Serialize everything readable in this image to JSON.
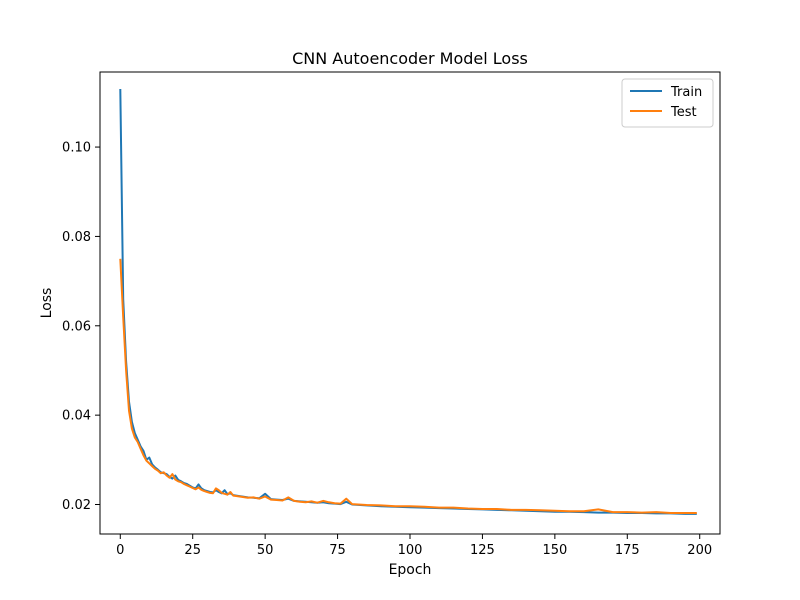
{
  "chart_data": {
    "type": "line",
    "title": "CNN Autoencoder Model Loss",
    "xlabel": "Epoch",
    "ylabel": "Loss",
    "xlim": [
      -7,
      207
    ],
    "ylim": [
      0.0134,
      0.1168
    ],
    "xticks": [
      0,
      25,
      50,
      75,
      100,
      125,
      150,
      175,
      200
    ],
    "yticks": [
      0.02,
      0.04,
      0.06,
      0.08,
      0.1
    ],
    "ytick_labels": [
      "0.02",
      "0.04",
      "0.06",
      "0.08",
      "0.10"
    ],
    "grid": false,
    "legend_position": "top-right",
    "series": [
      {
        "name": "Train",
        "color": "#1f77b4",
        "points": [
          [
            0,
            0.113
          ],
          [
            1,
            0.066
          ],
          [
            2,
            0.052
          ],
          [
            3,
            0.043
          ],
          [
            4,
            0.0385
          ],
          [
            5,
            0.036
          ],
          [
            6,
            0.0345
          ],
          [
            7,
            0.033
          ],
          [
            8,
            0.032
          ],
          [
            9,
            0.03
          ],
          [
            10,
            0.0305
          ],
          [
            11,
            0.029
          ],
          [
            12,
            0.0283
          ],
          [
            13,
            0.0278
          ],
          [
            14,
            0.0272
          ],
          [
            15,
            0.027
          ],
          [
            16,
            0.0268
          ],
          [
            17,
            0.0262
          ],
          [
            18,
            0.0258
          ],
          [
            19,
            0.0265
          ],
          [
            20,
            0.0255
          ],
          [
            21,
            0.0252
          ],
          [
            22,
            0.0248
          ],
          [
            23,
            0.0246
          ],
          [
            24,
            0.0242
          ],
          [
            25,
            0.0238
          ],
          [
            26,
            0.0236
          ],
          [
            27,
            0.0245
          ],
          [
            28,
            0.0236
          ],
          [
            29,
            0.0232
          ],
          [
            30,
            0.023
          ],
          [
            31,
            0.0228
          ],
          [
            32,
            0.0227
          ],
          [
            33,
            0.0232
          ],
          [
            34,
            0.0228
          ],
          [
            35,
            0.0225
          ],
          [
            36,
            0.0232
          ],
          [
            37,
            0.0223
          ],
          [
            38,
            0.0225
          ],
          [
            39,
            0.0221
          ],
          [
            40,
            0.022
          ],
          [
            42,
            0.0218
          ],
          [
            44,
            0.0216
          ],
          [
            46,
            0.0215
          ],
          [
            48,
            0.0214
          ],
          [
            50,
            0.0224
          ],
          [
            52,
            0.0212
          ],
          [
            54,
            0.0211
          ],
          [
            56,
            0.021
          ],
          [
            58,
            0.0213
          ],
          [
            60,
            0.0208
          ],
          [
            62,
            0.0207
          ],
          [
            64,
            0.0206
          ],
          [
            66,
            0.0205
          ],
          [
            68,
            0.0204
          ],
          [
            70,
            0.0205
          ],
          [
            72,
            0.0203
          ],
          [
            74,
            0.0202
          ],
          [
            76,
            0.0201
          ],
          [
            78,
            0.0206
          ],
          [
            80,
            0.02
          ],
          [
            85,
            0.0198
          ],
          [
            90,
            0.0196
          ],
          [
            95,
            0.0195
          ],
          [
            100,
            0.0194
          ],
          [
            105,
            0.0193
          ],
          [
            110,
            0.0192
          ],
          [
            115,
            0.0191
          ],
          [
            120,
            0.019
          ],
          [
            125,
            0.0189
          ],
          [
            130,
            0.0188
          ],
          [
            135,
            0.0187
          ],
          [
            140,
            0.0186
          ],
          [
            145,
            0.0185
          ],
          [
            150,
            0.0184
          ],
          [
            155,
            0.0184
          ],
          [
            160,
            0.0183
          ],
          [
            165,
            0.0182
          ],
          [
            170,
            0.0182
          ],
          [
            175,
            0.0181
          ],
          [
            180,
            0.0181
          ],
          [
            185,
            0.018
          ],
          [
            190,
            0.018
          ],
          [
            195,
            0.0179
          ],
          [
            199,
            0.0179
          ]
        ]
      },
      {
        "name": "Test",
        "color": "#ff7f0e",
        "points": [
          [
            0,
            0.075
          ],
          [
            1,
            0.062
          ],
          [
            2,
            0.05
          ],
          [
            3,
            0.041
          ],
          [
            4,
            0.037
          ],
          [
            5,
            0.035
          ],
          [
            6,
            0.034
          ],
          [
            7,
            0.0325
          ],
          [
            8,
            0.031
          ],
          [
            9,
            0.0298
          ],
          [
            10,
            0.0292
          ],
          [
            11,
            0.0286
          ],
          [
            12,
            0.028
          ],
          [
            13,
            0.0276
          ],
          [
            14,
            0.027
          ],
          [
            15,
            0.0272
          ],
          [
            16,
            0.0265
          ],
          [
            17,
            0.026
          ],
          [
            18,
            0.0268
          ],
          [
            19,
            0.0256
          ],
          [
            20,
            0.0252
          ],
          [
            21,
            0.025
          ],
          [
            22,
            0.0246
          ],
          [
            23,
            0.0243
          ],
          [
            24,
            0.024
          ],
          [
            25,
            0.0237
          ],
          [
            26,
            0.0234
          ],
          [
            27,
            0.0238
          ],
          [
            28,
            0.0233
          ],
          [
            29,
            0.023
          ],
          [
            30,
            0.0228
          ],
          [
            31,
            0.0226
          ],
          [
            32,
            0.0225
          ],
          [
            33,
            0.0236
          ],
          [
            34,
            0.0232
          ],
          [
            35,
            0.0226
          ],
          [
            36,
            0.0224
          ],
          [
            37,
            0.0222
          ],
          [
            38,
            0.0228
          ],
          [
            39,
            0.022
          ],
          [
            40,
            0.0219
          ],
          [
            42,
            0.0217
          ],
          [
            44,
            0.0215
          ],
          [
            46,
            0.0216
          ],
          [
            48,
            0.0213
          ],
          [
            50,
            0.0218
          ],
          [
            52,
            0.0211
          ],
          [
            54,
            0.021
          ],
          [
            56,
            0.0209
          ],
          [
            58,
            0.0216
          ],
          [
            60,
            0.0208
          ],
          [
            62,
            0.0206
          ],
          [
            64,
            0.0205
          ],
          [
            66,
            0.0207
          ],
          [
            68,
            0.0204
          ],
          [
            70,
            0.0208
          ],
          [
            72,
            0.0205
          ],
          [
            74,
            0.0203
          ],
          [
            76,
            0.0202
          ],
          [
            78,
            0.0213
          ],
          [
            80,
            0.0201
          ],
          [
            85,
            0.0199
          ],
          [
            90,
            0.0198
          ],
          [
            95,
            0.0196
          ],
          [
            100,
            0.0196
          ],
          [
            105,
            0.0195
          ],
          [
            110,
            0.0193
          ],
          [
            115,
            0.0193
          ],
          [
            120,
            0.0191
          ],
          [
            125,
            0.019
          ],
          [
            130,
            0.019
          ],
          [
            135,
            0.0188
          ],
          [
            140,
            0.0188
          ],
          [
            145,
            0.0187
          ],
          [
            150,
            0.0186
          ],
          [
            155,
            0.0185
          ],
          [
            160,
            0.0185
          ],
          [
            165,
            0.0189
          ],
          [
            170,
            0.0183
          ],
          [
            175,
            0.0183
          ],
          [
            180,
            0.0182
          ],
          [
            185,
            0.0183
          ],
          [
            190,
            0.0181
          ],
          [
            195,
            0.0181
          ],
          [
            199,
            0.0181
          ]
        ]
      }
    ]
  }
}
